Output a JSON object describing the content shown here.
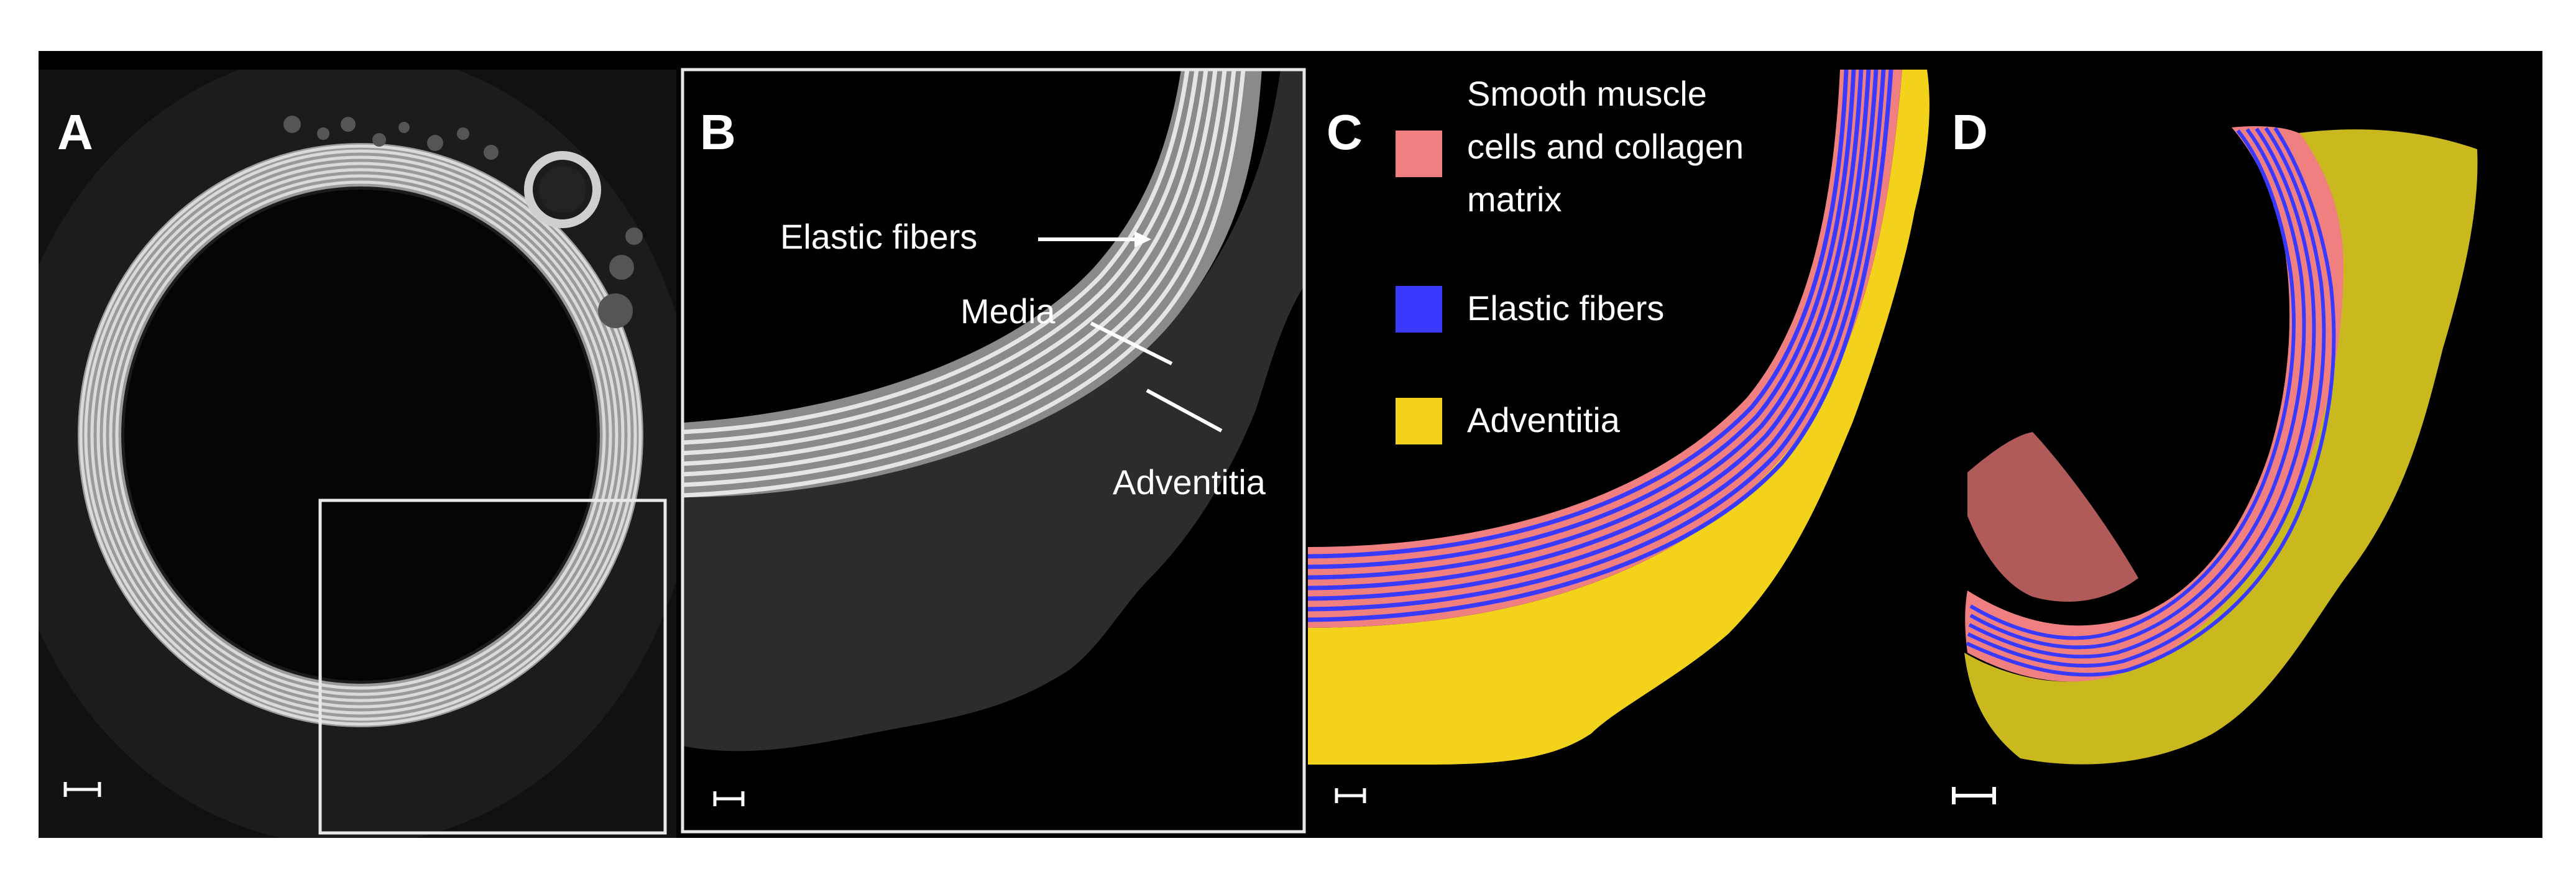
{
  "figure": {
    "panels": {
      "a": {
        "letter": "A"
      },
      "b": {
        "letter": "B",
        "annotations": {
          "elastic_fibers": "Elastic fibers",
          "media": "Media",
          "adventitia": "Adventitia"
        }
      },
      "c": {
        "letter": "C",
        "legend": [
          {
            "lines": [
              "Smooth muscle",
              "cells and collagen",
              "matrix"
            ],
            "color": "#f08080"
          },
          {
            "lines": [
              "Elastic fibers"
            ],
            "color": "#3a3aff"
          },
          {
            "lines": [
              "Adventitia"
            ],
            "color": "#f2d21b"
          }
        ]
      },
      "d": {
        "letter": "D"
      }
    },
    "colors": {
      "background": "#000000",
      "smooth_muscle": "#f08080",
      "elastic_fiber": "#3a3aff",
      "adventitia": "#f2d21b",
      "adventitia_3d": "#c9b81e",
      "frame": "#e8e8e8"
    }
  }
}
